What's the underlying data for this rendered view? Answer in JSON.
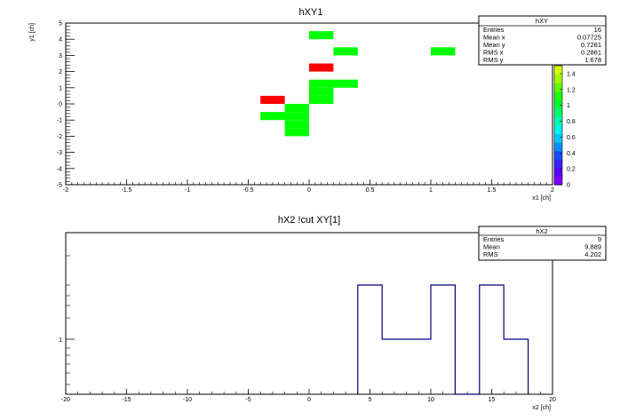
{
  "chart_data": [
    {
      "type": "heatmap",
      "title": "hXY1",
      "xlabel": "x1 [ch]",
      "ylabel": "y1 [ch]",
      "xlim": [
        -2,
        2
      ],
      "ylim": [
        -5,
        5
      ],
      "xticks": [
        "-2",
        "-1.5",
        "-1",
        "-0.5",
        "0",
        "0.5",
        "1",
        "1.5",
        "2"
      ],
      "yticks": [
        "-5",
        "-4",
        "-3",
        "-2",
        "-1",
        "0",
        "1",
        "2",
        "3",
        "4",
        "5"
      ],
      "cell_width": 0.2,
      "cell_height": 0.5,
      "cells": [
        {
          "x": 0.0,
          "y": 4.0,
          "value": 1
        },
        {
          "x": 0.2,
          "y": 3.0,
          "value": 1
        },
        {
          "x": 1.0,
          "y": 3.0,
          "value": 1
        },
        {
          "x": 0.0,
          "y": 2.0,
          "value": 2
        },
        {
          "x": 0.0,
          "y": 1.0,
          "value": 1
        },
        {
          "x": 0.2,
          "y": 1.0,
          "value": 1
        },
        {
          "x": 0.0,
          "y": 0.5,
          "value": 1
        },
        {
          "x": 0.0,
          "y": 0.0,
          "value": 1
        },
        {
          "x": -0.4,
          "y": 0.0,
          "value": 2
        },
        {
          "x": -0.4,
          "y": -1.0,
          "value": 1
        },
        {
          "x": -0.2,
          "y": -1.0,
          "value": 1
        },
        {
          "x": -0.2,
          "y": -0.5,
          "value": 1
        },
        {
          "x": -0.2,
          "y": -1.5,
          "value": 1
        },
        {
          "x": -0.2,
          "y": -2.0,
          "value": 1
        }
      ],
      "palette_ticks": [
        "0",
        "0.2",
        "0.4",
        "0.6",
        "0.8",
        "1",
        "1.2",
        "1.4"
      ],
      "stats": {
        "name": "hXY",
        "rows": [
          {
            "label": "Entries",
            "value": "16"
          },
          {
            "label": "Mean x",
            "value": "0.07725"
          },
          {
            "label": "Mean y",
            "value": "0.7281"
          },
          {
            "label": "RMS x",
            "value": "0.2861"
          },
          {
            "label": "RMS y",
            "value": "1.678"
          }
        ]
      }
    },
    {
      "type": "bar",
      "title": "hX2 !cut XY[1]",
      "xlabel": "x2 [ch]",
      "ylabel": "",
      "xlim": [
        -20,
        20
      ],
      "xticks": [
        "-20",
        "-15",
        "-10",
        "-5",
        "0",
        "5",
        "10",
        "15",
        "20"
      ],
      "ytick_label": "1",
      "bins": [
        {
          "x0": 4,
          "x1": 6,
          "value": 2
        },
        {
          "x0": 6,
          "x1": 10,
          "value": 1
        },
        {
          "x0": 10,
          "x1": 12,
          "value": 2
        },
        {
          "x0": 12,
          "x1": 14,
          "value": 0
        },
        {
          "x0": 14,
          "x1": 16,
          "value": 2
        },
        {
          "x0": 16,
          "x1": 18,
          "value": 1
        }
      ],
      "line_color": "#000080",
      "stats": {
        "name": "hX2",
        "rows": [
          {
            "label": "Entries",
            "value": "9"
          },
          {
            "label": "Mean",
            "value": "9.889"
          },
          {
            "label": "RMS",
            "value": "4.202"
          }
        ]
      }
    }
  ],
  "colors": {
    "low": "#00ff00",
    "high": "#ff0000"
  }
}
